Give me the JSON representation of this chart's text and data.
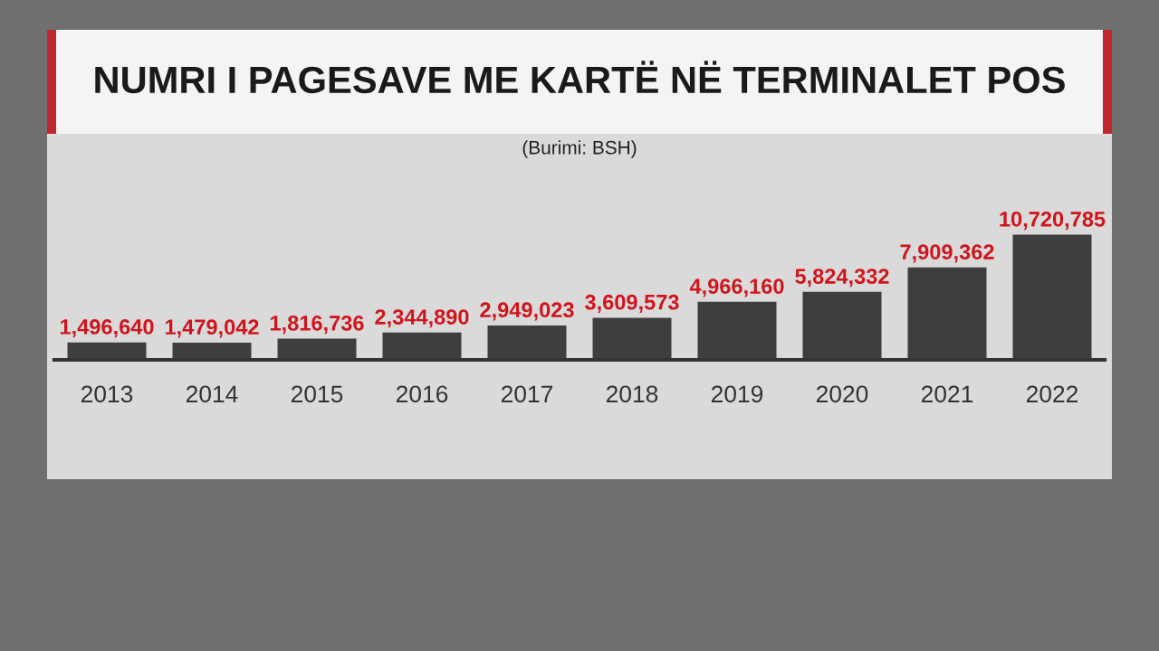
{
  "chart_data": {
    "type": "bar",
    "title": "NUMRI I PAGESAVE ME KARTË NË TERMINALET POS",
    "annotations": [
      "(Burimi: BSH)"
    ],
    "categories": [
      "2013",
      "2014",
      "2015",
      "2016",
      "2017",
      "2018",
      "2019",
      "2020",
      "2021",
      "2022"
    ],
    "values": [
      1496640,
      1479042,
      1816736,
      2344890,
      2949023,
      3609573,
      4966160,
      5824332,
      7909362,
      10720785
    ],
    "color": "#3e3e3e",
    "value_labels": [
      "1,496,640",
      "1,479,042",
      "1,816,736",
      "2,344,890",
      "2,949,023",
      "3,609,573",
      "4,966,160",
      "5,824,332",
      "7,909,362",
      "10,720,785"
    ],
    "grid": false,
    "legend": false
  }
}
